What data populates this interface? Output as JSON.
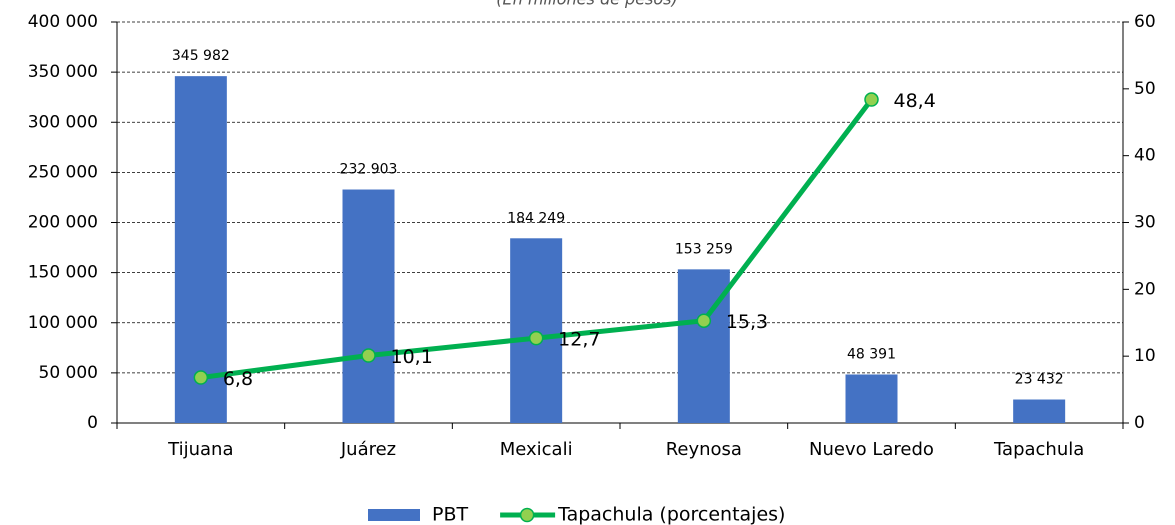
{
  "chart_data": {
    "type": "bar",
    "title": "(En millones de pesos)",
    "categories": [
      "Tijuana",
      "Juárez",
      "Mexicali",
      "Reynosa",
      "Nuevo Laredo",
      "Tapachula"
    ],
    "series": [
      {
        "name": "PBT",
        "color": "#4472c4",
        "values": [
          345982,
          232903,
          184249,
          153259,
          48391,
          23432
        ],
        "value_labels": [
          "345 982",
          "232 903",
          "184 249",
          "153 259",
          "48 391",
          "23 432"
        ]
      },
      {
        "name": "Tapachula (porcentajes)",
        "type": "line",
        "axis": "y2",
        "color": "#00b050",
        "marker_color": "#92d050",
        "values": [
          6.8,
          10.1,
          12.7,
          15.3,
          48.4,
          null
        ],
        "value_labels": [
          "6,8",
          "10,1",
          "12,7",
          "15,3",
          "48,4",
          null
        ]
      }
    ],
    "ylim": [
      0,
      400000
    ],
    "yticks": [
      0,
      {
        "value": 50000,
        "label": "50 000"
      },
      {
        "value": 100000,
        "label": "100 000"
      },
      {
        "value": 150000,
        "label": "150 000"
      },
      {
        "value": 200000,
        "label": "200 000"
      },
      {
        "value": 250000,
        "label": "250 000"
      },
      {
        "value": 300000,
        "label": "300 000"
      },
      {
        "value": 350000,
        "label": "350 000"
      },
      {
        "value": 400000,
        "label": "400 000"
      }
    ],
    "y2lim": [
      0,
      60
    ],
    "y2ticks": [
      0,
      10,
      20,
      30,
      40,
      50,
      60
    ],
    "grid": true,
    "legend": "bottom"
  }
}
